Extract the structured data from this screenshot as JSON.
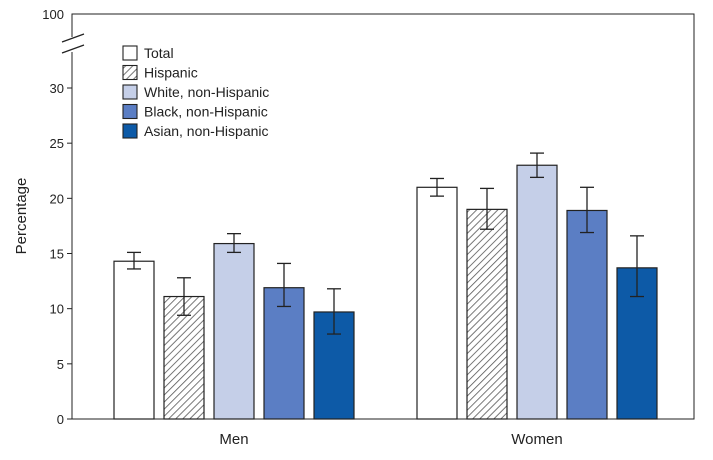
{
  "chart_data": {
    "type": "bar",
    "title": "",
    "xlabel": "",
    "ylabel": "Percentage",
    "ylim": [
      0,
      30
    ],
    "axis_break": true,
    "axis_top_label": "100",
    "yticks": [
      0,
      5,
      10,
      15,
      20,
      25,
      30
    ],
    "categories": [
      "Men",
      "Women"
    ],
    "series": [
      {
        "name": "Total",
        "color": "#ffffff",
        "pattern": "none",
        "values": [
          14.3,
          21.0
        ],
        "ci_low": [
          13.6,
          20.2
        ],
        "ci_high": [
          15.1,
          21.8
        ]
      },
      {
        "name": "Hispanic",
        "color": "#ffffff",
        "pattern": "hatch",
        "values": [
          11.1,
          19.0
        ],
        "ci_low": [
          9.4,
          17.2
        ],
        "ci_high": [
          12.8,
          20.9
        ]
      },
      {
        "name": "White, non-Hispanic",
        "color": "#c5cfe8",
        "pattern": "none",
        "values": [
          15.9,
          23.0
        ],
        "ci_low": [
          15.1,
          21.9
        ],
        "ci_high": [
          16.8,
          24.1
        ]
      },
      {
        "name": "Black, non-Hispanic",
        "color": "#5b7ec4",
        "pattern": "none",
        "values": [
          11.9,
          18.9
        ],
        "ci_low": [
          10.2,
          16.9
        ],
        "ci_high": [
          14.1,
          21.0
        ]
      },
      {
        "name": "Asian, non-Hispanic",
        "color": "#0d5aa7",
        "pattern": "none",
        "values": [
          9.7,
          13.7
        ],
        "ci_low": [
          7.7,
          11.1
        ],
        "ci_high": [
          11.8,
          16.6
        ]
      }
    ],
    "legend_position": "top-left"
  }
}
